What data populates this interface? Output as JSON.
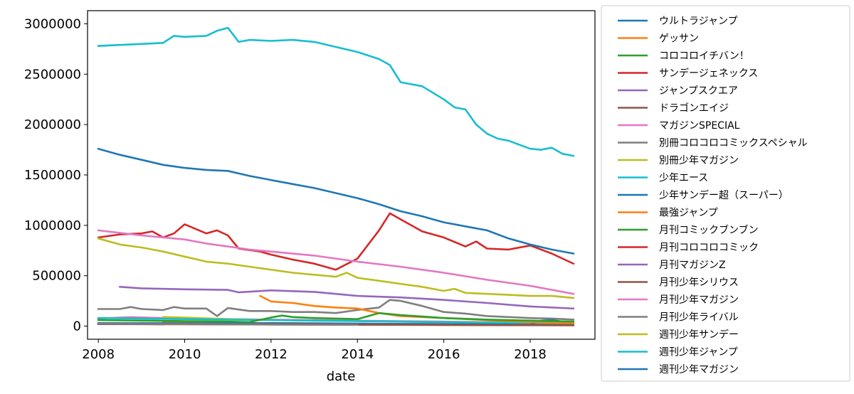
{
  "chart_data": {
    "type": "line",
    "xlabel": "date",
    "ylabel": "",
    "x_ticks": [
      "2008",
      "2010",
      "2012",
      "2014",
      "2016",
      "2018"
    ],
    "x_tick_values": [
      2008,
      2010,
      2012,
      2014,
      2016,
      2018
    ],
    "y_ticks": [
      "0",
      "500000",
      "1000000",
      "1500000",
      "2000000",
      "2500000",
      "3000000"
    ],
    "y_tick_values": [
      0,
      500000,
      1000000,
      1500000,
      2000000,
      2500000,
      3000000
    ],
    "xlim": [
      2007.75,
      2019.5
    ],
    "ylim": [
      -130000,
      3130000
    ],
    "grid": false,
    "legend_position": "outside-right",
    "series": [
      {
        "name": "ウルトラジャンプ",
        "color": "#1f77b4",
        "x": [
          2008.0,
          2009.0,
          2010.0,
          2011.0,
          2012.0,
          2013.0,
          2014.0,
          2015.0,
          2016.0,
          2017.0,
          2018.0,
          2019.0
        ],
        "values": [
          25000,
          28000,
          25000,
          27000,
          26000,
          26000,
          22000,
          18000,
          15000,
          14000,
          13000,
          12000
        ]
      },
      {
        "name": "ゲッサン",
        "color": "#ff7f0e",
        "x": [
          2009.5,
          2010.0,
          2011.0,
          2012.0,
          2013.0,
          2014.0,
          2015.0,
          2016.0,
          2017.0,
          2018.0,
          2019.0
        ],
        "values": [
          35000,
          40000,
          30000,
          25000,
          20000,
          18000,
          15000,
          12000,
          10000,
          9000,
          8000
        ]
      },
      {
        "name": "コロコロイチバン！",
        "color": "#2ca02c",
        "x": [
          2012.0,
          2012.5,
          2013.0,
          2014.0,
          2015.0,
          2016.0,
          2017.0,
          2018.0,
          2019.0
        ],
        "values": [
          30000,
          28000,
          25000,
          22000,
          20000,
          18000,
          16000,
          15000,
          14000
        ]
      },
      {
        "name": "サンデージェネックス",
        "color": "#d62728",
        "x": [
          2008.0,
          2010.0,
          2012.0,
          2014.0,
          2016.0,
          2018.0,
          2019.0
        ],
        "values": [
          20000,
          18000,
          16000,
          14000,
          12000,
          10000,
          9000
        ]
      },
      {
        "name": "ジャンプスクエア",
        "color": "#9467bd",
        "x": [
          2008.5,
          2009.0,
          2010.0,
          2011.0,
          2011.25,
          2012.0,
          2013.0,
          2014.0,
          2015.0,
          2016.0,
          2017.0,
          2018.0,
          2019.0
        ],
        "values": [
          390000,
          375000,
          365000,
          360000,
          335000,
          355000,
          340000,
          300000,
          285000,
          260000,
          230000,
          195000,
          175000
        ]
      },
      {
        "name": "ドラゴンエイジ",
        "color": "#8c564b",
        "x": [
          2008.0,
          2009.0,
          2010.0,
          2011.0,
          2012.0,
          2013.0,
          2014.0,
          2015.0,
          2016.0,
          2017.0,
          2018.0,
          2019.0
        ],
        "values": [
          20000,
          22000,
          25000,
          28000,
          30000,
          28000,
          25000,
          22000,
          20000,
          18000,
          16000,
          14000
        ]
      },
      {
        "name": "マガジンSPECIAL",
        "color": "#e377c2",
        "x": [
          2008.0,
          2008.75,
          2009.5,
          2010.0,
          2011.0,
          2012.0,
          2013.0,
          2014.0,
          2015.0,
          2016.0,
          2017.0,
          2018.0,
          2019.0
        ],
        "values": [
          75000,
          90000,
          80000,
          75000,
          70000,
          65000,
          60000,
          55000,
          50000,
          45000,
          40000,
          35000,
          30000
        ]
      },
      {
        "name": "別冊コロコロコミックスペシャル",
        "color": "#7f7f7f",
        "x": [
          2008.0,
          2008.5,
          2008.75,
          2009.0,
          2009.5,
          2009.75,
          2010.0,
          2010.5,
          2010.75,
          2011.0,
          2011.5,
          2012.0,
          2012.5,
          2013.0,
          2013.5,
          2014.0,
          2014.5,
          2014.75,
          2015.0,
          2015.5,
          2016.0,
          2016.5,
          2017.0,
          2017.5,
          2018.0,
          2018.5,
          2019.0
        ],
        "values": [
          170000,
          170000,
          190000,
          170000,
          160000,
          190000,
          175000,
          175000,
          100000,
          180000,
          150000,
          150000,
          140000,
          140000,
          130000,
          160000,
          185000,
          260000,
          250000,
          200000,
          140000,
          125000,
          100000,
          90000,
          80000,
          75000,
          65000
        ]
      },
      {
        "name": "別冊少年マガジン",
        "color": "#bcbd22",
        "x": [
          2009.5,
          2010.0,
          2011.0,
          2012.0,
          2013.0,
          2014.0,
          2015.0,
          2016.0,
          2017.0,
          2018.0,
          2019.0
        ],
        "values": [
          90000,
          85000,
          70000,
          60000,
          55000,
          50000,
          45000,
          40000,
          38000,
          35000,
          33000
        ]
      },
      {
        "name": "少年エース",
        "color": "#17becf",
        "x": [
          2008.0,
          2009.0,
          2010.0,
          2011.0,
          2012.0,
          2013.0,
          2014.0,
          2015.0,
          2016.0,
          2017.0,
          2018.0,
          2019.0
        ],
        "values": [
          80000,
          75000,
          70000,
          65000,
          60000,
          55000,
          50000,
          45000,
          40000,
          35000,
          30000,
          28000
        ]
      },
      {
        "name": "少年サンデー超（スーパー）",
        "color": "#1f77b4",
        "x": [
          2008.0,
          2010.0,
          2012.0,
          2014.0,
          2016.0,
          2017.0,
          2018.0,
          2018.25,
          2018.5,
          2019.0
        ],
        "values": [
          30000,
          28000,
          26000,
          24000,
          20000,
          18000,
          15000,
          55000,
          60000,
          30000
        ]
      },
      {
        "name": "最強ジャンプ",
        "color": "#ff7f0e",
        "x": [
          2011.75,
          2012.0,
          2012.5,
          2013.0,
          2013.5,
          2014.0,
          2014.5,
          2015.0,
          2016.0,
          2017.0,
          2018.0,
          2019.0
        ],
        "values": [
          300000,
          245000,
          230000,
          200000,
          185000,
          175000,
          130000,
          100000,
          80000,
          60000,
          40000,
          30000
        ]
      },
      {
        "name": "月刊コミックブンブン",
        "color": "#2ca02c",
        "x": [
          2008.0,
          2009.0,
          2010.0,
          2011.0,
          2011.5,
          2012.0,
          2012.25,
          2012.5,
          2013.0,
          2013.5,
          2014.0,
          2014.5,
          2015.0,
          2015.5,
          2016.0,
          2017.0,
          2018.0,
          2019.0
        ],
        "values": [
          60000,
          55000,
          50000,
          45000,
          40000,
          85000,
          105000,
          90000,
          80000,
          75000,
          70000,
          130000,
          110000,
          95000,
          80000,
          65000,
          55000,
          45000
        ]
      },
      {
        "name": "月刊コロコロコミック",
        "color": "#d62728",
        "x": [
          2008.0,
          2008.5,
          2009.0,
          2009.25,
          2009.5,
          2009.75,
          2010.0,
          2010.5,
          2010.75,
          2011.0,
          2011.25,
          2011.75,
          2012.0,
          2012.5,
          2013.0,
          2013.5,
          2014.0,
          2014.5,
          2014.75,
          2015.0,
          2015.5,
          2016.0,
          2016.5,
          2016.75,
          2017.0,
          2017.5,
          2018.0,
          2018.5,
          2019.0
        ],
        "values": [
          880000,
          910000,
          920000,
          940000,
          880000,
          920000,
          1010000,
          920000,
          950000,
          900000,
          770000,
          740000,
          710000,
          660000,
          620000,
          560000,
          670000,
          950000,
          1120000,
          1060000,
          940000,
          880000,
          790000,
          840000,
          770000,
          760000,
          800000,
          720000,
          620000
        ]
      },
      {
        "name": "月刊マガジンZ",
        "color": "#9467bd",
        "x": [
          2008.0,
          2008.5,
          2009.0,
          2009.5
        ],
        "values": [
          25000,
          22000,
          20000,
          18000
        ]
      },
      {
        "name": "月刊少年シリウス",
        "color": "#8c564b",
        "x": [
          2008.0,
          2009.0,
          2010.0,
          2011.0,
          2012.0,
          2013.0,
          2014.0,
          2015.0,
          2016.0,
          2017.0,
          2018.0,
          2019.0
        ],
        "values": [
          20000,
          20000,
          20000,
          18000,
          17000,
          16000,
          15000,
          14000,
          13000,
          12000,
          11000,
          10000
        ]
      },
      {
        "name": "月刊少年マガジン",
        "color": "#e377c2",
        "x": [
          2008.0,
          2009.0,
          2010.0,
          2010.5,
          2011.0,
          2011.5,
          2012.0,
          2013.0,
          2014.0,
          2015.0,
          2016.0,
          2017.0,
          2018.0,
          2019.0
        ],
        "values": [
          950000,
          900000,
          860000,
          820000,
          790000,
          760000,
          740000,
          700000,
          640000,
          590000,
          530000,
          460000,
          400000,
          320000
        ]
      },
      {
        "name": "月刊少年ライバル",
        "color": "#7f7f7f",
        "x": [
          2008.0,
          2009.0,
          2010.0,
          2011.0,
          2012.0,
          2013.0,
          2014.0
        ],
        "values": [
          25000,
          22000,
          20000,
          18000,
          16000,
          15000,
          14000
        ]
      },
      {
        "name": "週刊少年サンデー",
        "color": "#bcbd22",
        "x": [
          2008.0,
          2008.5,
          2009.0,
          2009.5,
          2010.0,
          2010.5,
          2011.0,
          2011.5,
          2012.0,
          2012.5,
          2013.0,
          2013.5,
          2013.75,
          2014.0,
          2014.5,
          2015.0,
          2015.5,
          2016.0,
          2016.25,
          2016.5,
          2017.0,
          2017.5,
          2018.0,
          2018.5,
          2019.0
        ],
        "values": [
          870000,
          810000,
          780000,
          740000,
          690000,
          640000,
          620000,
          590000,
          560000,
          530000,
          510000,
          490000,
          530000,
          480000,
          450000,
          420000,
          390000,
          350000,
          370000,
          330000,
          320000,
          310000,
          300000,
          300000,
          280000
        ]
      },
      {
        "name": "週刊少年ジャンプ",
        "color": "#17becf",
        "x": [
          2008.0,
          2008.5,
          2009.0,
          2009.5,
          2009.75,
          2010.0,
          2010.5,
          2010.75,
          2011.0,
          2011.25,
          2011.5,
          2012.0,
          2012.5,
          2013.0,
          2013.5,
          2014.0,
          2014.5,
          2014.75,
          2015.0,
          2015.5,
          2016.0,
          2016.25,
          2016.5,
          2016.75,
          2017.0,
          2017.25,
          2017.5,
          2018.0,
          2018.25,
          2018.5,
          2018.75,
          2019.0
        ],
        "values": [
          2780000,
          2790000,
          2800000,
          2810000,
          2880000,
          2870000,
          2880000,
          2930000,
          2960000,
          2820000,
          2840000,
          2830000,
          2840000,
          2820000,
          2770000,
          2720000,
          2650000,
          2590000,
          2420000,
          2380000,
          2250000,
          2170000,
          2150000,
          2000000,
          1910000,
          1860000,
          1840000,
          1760000,
          1750000,
          1770000,
          1710000,
          1690000
        ]
      },
      {
        "name": "週刊少年マガジン",
        "color": "#1f77b4",
        "x": [
          2008.0,
          2008.5,
          2009.0,
          2009.5,
          2010.0,
          2010.5,
          2011.0,
          2011.5,
          2012.0,
          2012.5,
          2013.0,
          2013.5,
          2014.0,
          2014.5,
          2015.0,
          2015.5,
          2016.0,
          2016.5,
          2017.0,
          2017.5,
          2018.0,
          2018.5,
          2019.0
        ],
        "values": [
          1760000,
          1700000,
          1650000,
          1600000,
          1570000,
          1550000,
          1540000,
          1490000,
          1450000,
          1410000,
          1370000,
          1320000,
          1270000,
          1210000,
          1140000,
          1090000,
          1030000,
          990000,
          950000,
          870000,
          810000,
          760000,
          720000
        ]
      }
    ]
  }
}
